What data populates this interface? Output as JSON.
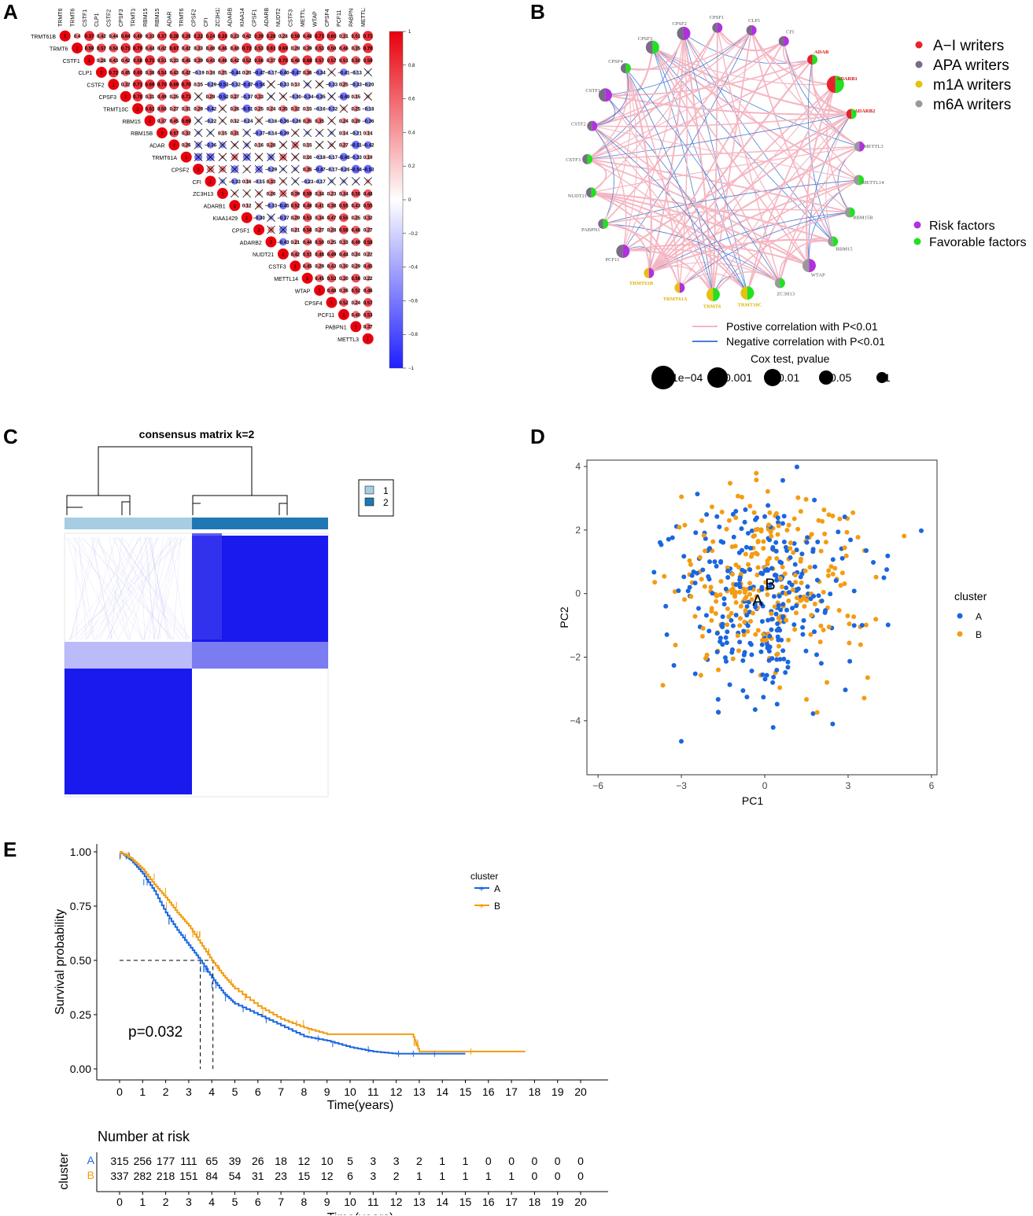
{
  "panels": {
    "A": {
      "letter": "A",
      "genes": [
        "TRMT61B",
        "TRMT6",
        "CSTF1",
        "CLP1",
        "CSTF2",
        "CPSF3",
        "TRMT10C",
        "RBM15",
        "RBM15B",
        "ADAR",
        "TRMT61A",
        "CPSF2",
        "CFI",
        "ZC3H13",
        "ADARB1",
        "KIAA1429",
        "CPSF1",
        "ADARB2",
        "NUDT21",
        "CSTF3",
        "METTL14",
        "WTAP",
        "CPSF4",
        "PCF11",
        "PABPN1",
        "METTL3"
      ],
      "colorbar_ticks": [
        "1",
        "0.8",
        "0.6",
        "0.4",
        "0.2",
        "0",
        "−0.2",
        "−0.4",
        "−0.6",
        "−0.8",
        "−1"
      ],
      "first_row_values": [
        "0.4",
        "0.37",
        "0.42",
        "0.44",
        "0.64",
        "0.49",
        "0.33",
        "0.37",
        "0.28",
        "0.28",
        "0.22",
        "0.24",
        "0.28",
        "0.23",
        "0.42",
        "0.39",
        "0.28"
      ],
      "colors": {
        "pos": "#e8000b",
        "neg": "#1f1fff"
      }
    },
    "B": {
      "letter": "B",
      "nodes": [
        "CPSF3",
        "CPSF2",
        "CPSF1",
        "CLP1",
        "CFI",
        "ADAR",
        "ADARB1",
        "ADARB2",
        "METTL3",
        "METTL14",
        "RBM15B",
        "RBM15",
        "WTAP",
        "ZC3H13",
        "TRMT10C",
        "TRMT6",
        "TRMT61A",
        "TRMT61B",
        "PCF11",
        "PABPN1",
        "NUDT21",
        "CSTF3",
        "CSTF2",
        "CSTF1",
        "CPSF4"
      ],
      "legend_groups": [
        {
          "label": "A−I writers",
          "color": "#e8222b"
        },
        {
          "label": "APA writers",
          "color": "#7b6b86"
        },
        {
          "label": "m1A writers",
          "color": "#e5c20f"
        },
        {
          "label": "m6A writers",
          "color": "#999999"
        }
      ],
      "legend_factors": [
        {
          "label": "Risk factors",
          "color": "#b030e0"
        },
        {
          "label": "Favorable factors",
          "color": "#22e022"
        }
      ],
      "legend_edges": [
        {
          "label": "Postive correlation with P<0.01",
          "color": "#f4b6c2"
        },
        {
          "label": "Negative correlation with P<0.01",
          "color": "#4a7fd4"
        }
      ],
      "cox_title": "Cox test, pvalue",
      "cox_sizes": [
        "1e−04",
        "0.001",
        "0.01",
        "0.05",
        "1"
      ]
    },
    "C": {
      "letter": "C",
      "title": "consensus matrix k=2",
      "legend": [
        {
          "label": "1",
          "color": "#a6cde3"
        },
        {
          "label": "2",
          "color": "#1f78b4"
        }
      ]
    },
    "D": {
      "letter": "D",
      "xlabel": "PC1",
      "ylabel": "PC2",
      "x_ticks": [
        "−6",
        "−3",
        "0",
        "3",
        "6"
      ],
      "y_ticks": [
        "4",
        "2",
        "0",
        "−2",
        "−4"
      ],
      "legend_title": "cluster",
      "legend_items": [
        {
          "label": "A",
          "color": "#1a66e0"
        },
        {
          "label": "B",
          "color": "#f39c12"
        }
      ],
      "centroid_labels": [
        "A",
        "B"
      ]
    },
    "E": {
      "letter": "E",
      "ylabel": "Survival probability",
      "xlabel": "Time(years)",
      "y_ticks": [
        "1.00",
        "0.75",
        "0.50",
        "0.25",
        "0.00"
      ],
      "x_ticks": [
        "0",
        "1",
        "2",
        "3",
        "4",
        "5",
        "6",
        "7",
        "8",
        "9",
        "10",
        "11",
        "12",
        "13",
        "14",
        "15",
        "16",
        "17",
        "18",
        "19",
        "20"
      ],
      "pvalue": "p=0.032",
      "legend_title": "cluster",
      "legend_items": [
        {
          "label": "A",
          "color": "#1a66e0"
        },
        {
          "label": "B",
          "color": "#f39c12"
        }
      ],
      "risk_title": "Number at risk",
      "risk_ylabel": "cluster",
      "risk_rows": [
        {
          "label": "A",
          "color": "#1a66e0",
          "values": [
            "315",
            "256",
            "177",
            "111",
            "65",
            "39",
            "26",
            "18",
            "12",
            "10",
            "5",
            "3",
            "3",
            "2",
            "1",
            "1",
            "0",
            "0",
            "0",
            "0",
            "0"
          ]
        },
        {
          "label": "B",
          "color": "#f39c12",
          "values": [
            "337",
            "282",
            "218",
            "151",
            "84",
            "54",
            "31",
            "23",
            "15",
            "12",
            "6",
            "3",
            "2",
            "1",
            "1",
            "1",
            "1",
            "1",
            "0",
            "0",
            "0"
          ]
        }
      ]
    }
  },
  "chart_data": [
    {
      "type": "scatter",
      "title": "",
      "xlabel": "PC1",
      "ylabel": "PC2",
      "xlim": [
        -6.4,
        6.2
      ],
      "ylim": [
        -5.7,
        4.2
      ],
      "series": [
        {
          "name": "A",
          "centroid": [
            -0.2,
            -0.2
          ]
        },
        {
          "name": "B",
          "centroid": [
            0.2,
            0.3
          ]
        }
      ]
    },
    {
      "type": "line",
      "title": "",
      "xlabel": "Time(years)",
      "ylabel": "Survival probability",
      "xlim": [
        0,
        20
      ],
      "ylim": [
        0,
        1
      ],
      "series": [
        {
          "name": "A",
          "x": [
            0,
            0.5,
            1,
            1.5,
            2,
            2.5,
            3,
            3.5,
            4,
            4.5,
            5,
            6,
            7,
            8,
            9,
            10,
            11,
            12,
            13,
            15
          ],
          "y": [
            1,
            0.96,
            0.9,
            0.82,
            0.72,
            0.64,
            0.57,
            0.5,
            0.42,
            0.35,
            0.3,
            0.25,
            0.2,
            0.15,
            0.13,
            0.1,
            0.08,
            0.07,
            0.07,
            0.07
          ]
        },
        {
          "name": "B",
          "x": [
            0,
            0.5,
            1,
            1.5,
            2,
            2.5,
            3,
            3.5,
            4,
            4.5,
            5,
            6,
            7,
            8,
            9,
            10,
            11,
            12,
            12.7,
            13,
            17.6
          ],
          "y": [
            1,
            0.97,
            0.92,
            0.85,
            0.79,
            0.72,
            0.66,
            0.58,
            0.5,
            0.43,
            0.37,
            0.29,
            0.23,
            0.19,
            0.16,
            0.16,
            0.16,
            0.16,
            0.16,
            0.08,
            0.08
          ]
        }
      ],
      "median_lines": {
        "A": 3.5,
        "B": 4.05
      },
      "pvalue": "p=0.032"
    }
  ]
}
